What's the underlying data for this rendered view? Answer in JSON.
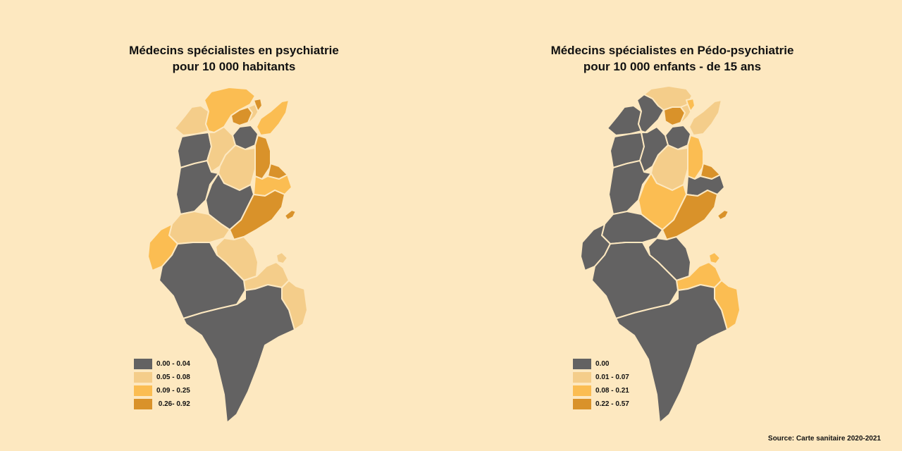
{
  "background": "#fde8c0",
  "colors": {
    "class0": "#636262",
    "class1": "#f4cd8a",
    "class2": "#fbbd52",
    "class3": "#d9922a"
  },
  "maps": [
    {
      "title_line1": "Médecins spécialistes en psychiatrie",
      "title_line2": "pour 10 000 habitants",
      "legend": [
        {
          "label": "0.00 - 0.04",
          "color": "#636262"
        },
        {
          "label": "0.05 - 0.08",
          "color": "#f4cd8a"
        },
        {
          "label": "0.09 - 0.25",
          "color": "#fbbd52"
        },
        {
          "label": " 0.26- 0.92",
          "color": "#d9922a"
        }
      ]
    },
    {
      "title_line1": "Médecins spécialistes en Pédo-psychiatrie",
      "title_line2": "pour 10 000 enfants - de 15 ans",
      "legend": [
        {
          "label": "0.00",
          "color": "#636262"
        },
        {
          "label": "0.01 - 0.07",
          "color": "#f4cd8a"
        },
        {
          "label": "0.08 - 0.21",
          "color": "#fbbd52"
        },
        {
          "label": "0.22 - 0.57",
          "color": "#d9922a"
        }
      ]
    }
  ],
  "source": "Source: Carte sanitaire 2020-2021"
}
